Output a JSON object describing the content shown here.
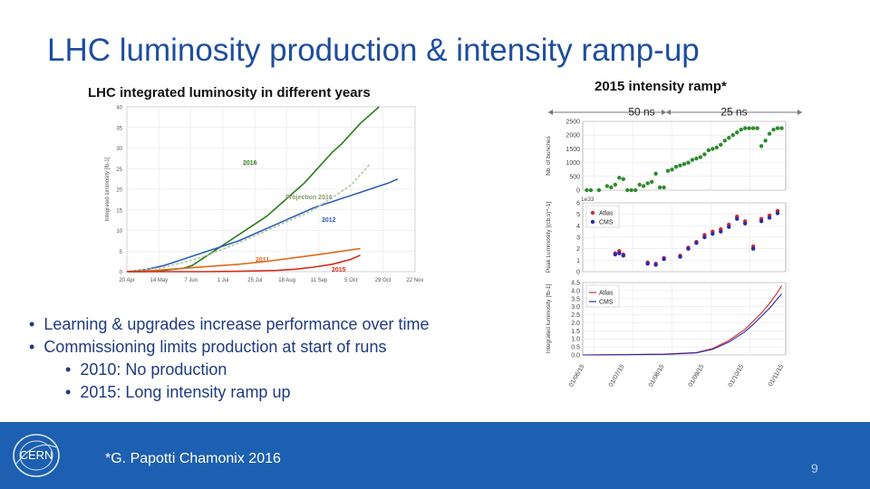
{
  "slide": {
    "title": "LHC luminosity production & intensity ramp-up",
    "left_subtitle": "LHC integrated luminosity in different years",
    "right_subtitle": "2015 intensity ramp*",
    "bullets": [
      {
        "level": 1,
        "text": "Learning & upgrades increase performance over time"
      },
      {
        "level": 1,
        "text": "Commissioning limits production at start of runs"
      },
      {
        "level": 2,
        "text": "2010: No production"
      },
      {
        "level": 2,
        "text": "2015: Long intensity ramp up"
      }
    ],
    "citation": "*G. Papotti Chamonix 2016",
    "page_number": "9",
    "logo_text": "CERN"
  },
  "colors": {
    "title": "#1f4e9e",
    "footer": "#1d5fb0",
    "bullets": "#1f3a80"
  },
  "chart_data": [
    {
      "type": "line",
      "title": "LHC integrated luminosity in different years",
      "ylabel": "Integrated luminosity [fb-1]",
      "xlabel": "",
      "ylim": [
        0,
        40
      ],
      "yticks": [
        0,
        5,
        10,
        15,
        20,
        25,
        30,
        35,
        40
      ],
      "xlim": [
        0,
        29
      ],
      "categories": [
        "20 Apr",
        "14 May",
        "7 Jun",
        "1 Jul",
        "25 Jul",
        "18 Aug",
        "11 Sep",
        "5 Oct",
        "29 Oct",
        "22 Nov"
      ],
      "category_weeks": [
        0,
        3.43,
        6.86,
        10.29,
        13.71,
        17.14,
        20.57,
        24,
        27.43,
        30.86
      ],
      "series": [
        {
          "name": "2016",
          "color": "#2e7d1f",
          "x": [
            0,
            2,
            4,
            6,
            7,
            8,
            9,
            10,
            11,
            12,
            13,
            14,
            15,
            16,
            17,
            18,
            19,
            20,
            21,
            22,
            23,
            24,
            25,
            26,
            27
          ],
          "y": [
            0,
            0,
            0.3,
            0.8,
            1.5,
            3,
            4.5,
            6,
            7.5,
            9,
            10.5,
            12,
            13.5,
            15.5,
            17.5,
            19.5,
            21.5,
            24,
            26.5,
            29,
            31,
            33.5,
            36,
            38,
            40
          ]
        },
        {
          "name": "2012",
          "color": "#2f5fb7",
          "x": [
            0,
            2,
            4,
            6,
            8,
            10,
            12,
            14,
            16,
            18,
            20,
            22,
            24,
            26,
            28,
            29
          ],
          "y": [
            0,
            0.5,
            1.5,
            3,
            4.5,
            6,
            7.5,
            9.5,
            11.5,
            13.5,
            15.5,
            17,
            18.5,
            20,
            21.5,
            22.5
          ]
        },
        {
          "name": "Projection 2016",
          "color": "#b0c89a",
          "x": [
            0,
            4,
            8,
            12,
            16,
            20,
            24,
            26
          ],
          "y": [
            0,
            1,
            3.5,
            7,
            11,
            15,
            21,
            26
          ]
        },
        {
          "name": "2011",
          "color": "#e06a1b",
          "x": [
            0,
            3,
            6,
            9,
            12,
            15,
            18,
            21,
            24,
            25
          ],
          "y": [
            0,
            0.3,
            0.8,
            1.3,
            1.8,
            2.5,
            3.4,
            4.3,
            5.3,
            5.6
          ]
        },
        {
          "name": "2015",
          "color": "#d82a1a",
          "x": [
            0,
            8,
            12,
            16,
            18,
            20,
            22,
            24,
            25
          ],
          "y": [
            0,
            0,
            0.1,
            0.3,
            0.6,
            1.1,
            1.8,
            3,
            4
          ]
        }
      ],
      "annotations": [
        "2016",
        "Projection 2016",
        "2012",
        "2011",
        "2015"
      ]
    },
    {
      "type": "scatter",
      "title": "2015 intensity ramp*",
      "panels": [
        {
          "ylabel": "Nb. of bunches",
          "ylim": [
            0,
            2500
          ],
          "yticks": [
            0,
            500,
            1000,
            1500,
            2000,
            2500
          ],
          "series": [
            {
              "name": "Nb. of bunches",
              "color": "#2e8b2e",
              "x": [
                0.5,
                1,
                2,
                3,
                3.5,
                4,
                4.5,
                5,
                5.5,
                6,
                6.5,
                7,
                7.5,
                8,
                8.5,
                9,
                9.5,
                10,
                10.5,
                11,
                11.5,
                12,
                12.5,
                13,
                13.5,
                14,
                14.5,
                15,
                15.5,
                16,
                16.5,
                17,
                17.5,
                18,
                18.5,
                19,
                19.5,
                20,
                20.5,
                21,
                21.5,
                22,
                22.5,
                23,
                23.5,
                24,
                24.5
              ],
              "y": [
                0,
                0,
                0,
                150,
                100,
                200,
                450,
                400,
                0,
                0,
                0,
                200,
                150,
                250,
                300,
                600,
                100,
                100,
                700,
                750,
                850,
                900,
                950,
                1000,
                1100,
                1150,
                1200,
                1300,
                1450,
                1500,
                1550,
                1650,
                1800,
                1900,
                2000,
                2100,
                2200,
                2250,
                2250,
                2250,
                2250,
                1600,
                1800,
                2050,
                2200,
                2250,
                2250
              ]
            }
          ]
        },
        {
          "ylabel": "Peak Luminosity [(cb.s)^-1]",
          "ylim": [
            0,
            6
          ],
          "yticks": [
            0,
            1,
            2,
            3,
            4,
            5,
            6
          ],
          "scale_label": "1e33",
          "series": [
            {
              "name": "Atlas",
              "color": "#d22b2b",
              "x": [
                4,
                4.5,
                5,
                8,
                9,
                10,
                12,
                13,
                14,
                15,
                16,
                17,
                18,
                19,
                20,
                21,
                22,
                23,
                24
              ],
              "y": [
                1.6,
                1.8,
                1.5,
                0.8,
                0.7,
                1.2,
                1.4,
                2.1,
                2.6,
                3.2,
                3.5,
                3.7,
                4.1,
                4.8,
                4.4,
                2.2,
                4.6,
                4.9,
                5.3
              ]
            },
            {
              "name": "CMS",
              "color": "#2a2ab0",
              "x": [
                4,
                4.5,
                5,
                8,
                9,
                10,
                12,
                13,
                14,
                15,
                16,
                17,
                18,
                19,
                20,
                21,
                22,
                23,
                24
              ],
              "y": [
                1.5,
                1.6,
                1.4,
                0.7,
                0.6,
                1.1,
                1.3,
                2.0,
                2.5,
                3.0,
                3.3,
                3.5,
                3.9,
                4.6,
                4.2,
                2.0,
                4.4,
                4.7,
                5.1
              ]
            }
          ]
        },
        {
          "ylabel": "Integrated luminosity [fb-1]",
          "ylim": [
            0,
            4.5
          ],
          "yticks": [
            "0.0",
            "0.5",
            "1.0",
            "1.5",
            "2.0",
            "2.5",
            "3.0",
            "3.5",
            "4.0",
            "4.5"
          ],
          "series": [
            {
              "name": "Atlas",
              "color": "#d22b2b",
              "x": [
                0,
                10,
                14,
                16,
                18,
                20,
                21,
                22,
                23,
                24,
                24.5
              ],
              "y": [
                0,
                0.05,
                0.15,
                0.4,
                0.9,
                1.6,
                2.1,
                2.6,
                3.2,
                3.9,
                4.3
              ]
            },
            {
              "name": "CMS",
              "color": "#2a2ab0",
              "x": [
                0,
                10,
                14,
                16,
                18,
                20,
                21,
                22,
                23,
                24,
                24.5
              ],
              "y": [
                0,
                0.04,
                0.13,
                0.35,
                0.8,
                1.45,
                1.9,
                2.4,
                2.9,
                3.5,
                3.8
              ]
            }
          ]
        }
      ],
      "xticks": [
        "01/06/15",
        "01/07/15",
        "01/08/15",
        "01/09/15",
        "01/10/15",
        "01/11/15"
      ],
      "xlim": [
        0,
        25
      ],
      "phase_labels": [
        "50 ns",
        "25 ns"
      ]
    }
  ]
}
